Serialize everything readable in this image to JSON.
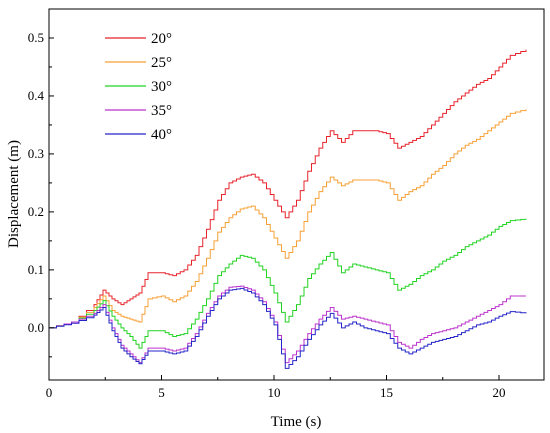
{
  "chart_data": {
    "type": "line",
    "title": "",
    "xlabel": "Time (s)",
    "ylabel": "Displacement (m)",
    "xlim": [
      0,
      22
    ],
    "ylim": [
      -0.09,
      0.55
    ],
    "xticks": [
      0,
      5,
      10,
      15,
      20
    ],
    "xtick_labels": [
      "0",
      "5",
      "10",
      "15",
      "20"
    ],
    "yticks": [
      0.0,
      0.1,
      0.2,
      0.3,
      0.4,
      0.5
    ],
    "ytick_labels": [
      "0.0",
      "0.1",
      "0.2",
      "0.3",
      "0.4",
      "0.5"
    ],
    "grid": false,
    "legend_position": "top-left",
    "series": [
      {
        "name": "20°",
        "color": "#e8232a",
        "x": [
          0,
          1,
          2,
          2.4,
          2.8,
          3.2,
          3.6,
          4.0,
          4.4,
          5.0,
          5.5,
          6.0,
          6.5,
          7.0,
          7.5,
          8.0,
          8.5,
          9.0,
          9.5,
          10.0,
          10.5,
          11.0,
          11.5,
          12.0,
          12.5,
          13.0,
          13.5,
          14.0,
          14.5,
          15.0,
          15.5,
          16.0,
          16.5,
          17.0,
          17.5,
          18.0,
          18.5,
          19.0,
          19.5,
          20.0,
          20.5,
          21.2
        ],
        "y": [
          0.0,
          0.01,
          0.04,
          0.065,
          0.05,
          0.04,
          0.05,
          0.06,
          0.095,
          0.095,
          0.09,
          0.1,
          0.125,
          0.17,
          0.22,
          0.25,
          0.26,
          0.265,
          0.25,
          0.22,
          0.19,
          0.22,
          0.27,
          0.31,
          0.34,
          0.32,
          0.34,
          0.34,
          0.34,
          0.335,
          0.31,
          0.32,
          0.33,
          0.35,
          0.37,
          0.39,
          0.405,
          0.42,
          0.43,
          0.45,
          0.47,
          0.48
        ]
      },
      {
        "name": "25°",
        "color": "#f7a035",
        "x": [
          0,
          1,
          2,
          2.4,
          2.8,
          3.2,
          3.6,
          4.0,
          4.4,
          5.0,
          5.5,
          6.0,
          6.5,
          7.0,
          7.5,
          8.0,
          8.5,
          9.0,
          9.5,
          10.0,
          10.5,
          11.0,
          11.5,
          12.0,
          12.5,
          13.0,
          13.5,
          14.0,
          14.5,
          15.0,
          15.5,
          16.0,
          16.5,
          17.0,
          17.5,
          18.0,
          18.5,
          19.0,
          19.5,
          20.0,
          20.5,
          21.2
        ],
        "y": [
          0.0,
          0.01,
          0.035,
          0.055,
          0.03,
          0.02,
          0.015,
          0.01,
          0.05,
          0.055,
          0.045,
          0.055,
          0.08,
          0.12,
          0.165,
          0.19,
          0.205,
          0.21,
          0.19,
          0.155,
          0.12,
          0.15,
          0.2,
          0.235,
          0.26,
          0.245,
          0.255,
          0.255,
          0.255,
          0.25,
          0.22,
          0.235,
          0.245,
          0.265,
          0.28,
          0.3,
          0.315,
          0.325,
          0.34,
          0.355,
          0.37,
          0.377
        ]
      },
      {
        "name": "30°",
        "color": "#21d321",
        "x": [
          0,
          1,
          2,
          2.4,
          2.8,
          3.2,
          3.6,
          4.0,
          4.4,
          5.0,
          5.5,
          6.0,
          6.5,
          7.0,
          7.5,
          8.0,
          8.5,
          9.0,
          9.5,
          10.0,
          10.5,
          11.0,
          11.5,
          12.0,
          12.5,
          13.0,
          13.5,
          14.0,
          14.5,
          15.0,
          15.5,
          16.0,
          16.5,
          17.0,
          17.5,
          18.0,
          18.5,
          19.0,
          19.5,
          20.0,
          20.5,
          21.2
        ],
        "y": [
          0.0,
          0.01,
          0.03,
          0.047,
          0.02,
          0.0,
          -0.015,
          -0.035,
          -0.005,
          -0.005,
          -0.015,
          -0.01,
          0.015,
          0.05,
          0.09,
          0.11,
          0.125,
          0.12,
          0.1,
          0.06,
          0.01,
          0.04,
          0.085,
          0.11,
          0.13,
          0.095,
          0.11,
          0.105,
          0.1,
          0.095,
          0.065,
          0.075,
          0.09,
          0.1,
          0.115,
          0.125,
          0.14,
          0.15,
          0.16,
          0.175,
          0.185,
          0.188
        ]
      },
      {
        "name": "35°",
        "color": "#bb33cc",
        "x": [
          0,
          1,
          2,
          2.4,
          2.8,
          3.2,
          3.6,
          4.0,
          4.4,
          5.0,
          5.5,
          6.0,
          6.5,
          7.0,
          7.5,
          8.0,
          8.5,
          9.0,
          9.5,
          10.0,
          10.5,
          11.0,
          11.5,
          12.0,
          12.5,
          13.0,
          13.5,
          14.0,
          14.5,
          15.0,
          15.5,
          16.0,
          16.5,
          17.0,
          17.5,
          18.0,
          18.5,
          19.0,
          19.5,
          20.0,
          20.5,
          21.2
        ],
        "y": [
          0.0,
          0.01,
          0.025,
          0.04,
          0.0,
          -0.03,
          -0.045,
          -0.06,
          -0.035,
          -0.035,
          -0.04,
          -0.035,
          -0.01,
          0.025,
          0.055,
          0.07,
          0.072,
          0.065,
          0.045,
          0.01,
          -0.06,
          -0.04,
          -0.01,
          0.015,
          0.035,
          0.015,
          0.02,
          0.015,
          0.01,
          0.005,
          -0.025,
          -0.035,
          -0.02,
          -0.01,
          -0.005,
          0.0,
          0.01,
          0.02,
          0.03,
          0.04,
          0.055,
          0.055
        ]
      },
      {
        "name": "40°",
        "color": "#2424c8",
        "x": [
          0,
          1,
          2,
          2.4,
          2.8,
          3.2,
          3.6,
          4.0,
          4.4,
          5.0,
          5.5,
          6.0,
          6.5,
          7.0,
          7.5,
          8.0,
          8.5,
          9.0,
          9.5,
          10.0,
          10.5,
          11.0,
          11.5,
          12.0,
          12.5,
          13.0,
          13.5,
          14.0,
          14.5,
          15.0,
          15.5,
          16.0,
          16.5,
          17.0,
          17.5,
          18.0,
          18.5,
          19.0,
          19.5,
          20.0,
          20.5,
          21.2
        ],
        "y": [
          0.0,
          0.008,
          0.022,
          0.035,
          -0.005,
          -0.035,
          -0.05,
          -0.062,
          -0.04,
          -0.04,
          -0.045,
          -0.04,
          -0.015,
          0.02,
          0.05,
          0.065,
          0.068,
          0.06,
          0.04,
          0.005,
          -0.07,
          -0.05,
          -0.02,
          0.005,
          0.025,
          0.0,
          0.01,
          0.0,
          -0.005,
          -0.01,
          -0.035,
          -0.045,
          -0.035,
          -0.025,
          -0.02,
          -0.015,
          -0.005,
          0.005,
          0.01,
          0.02,
          0.028,
          0.025
        ]
      }
    ]
  }
}
